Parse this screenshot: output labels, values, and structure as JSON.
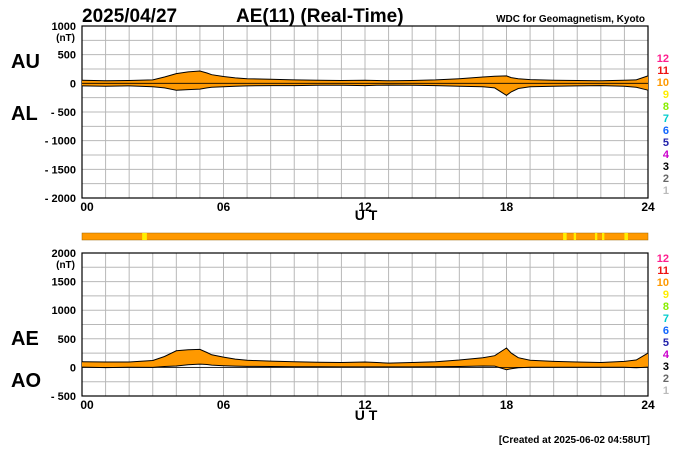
{
  "header": {
    "date": "2025/04/27",
    "title": "AE(11) (Real-Time)",
    "source": "WDC for Geomagnetism, Kyoto"
  },
  "footer": {
    "created": "[Created at 2025-06-02 04:58UT]"
  },
  "legend": {
    "items": [
      {
        "label": "12",
        "color": "#ff1f8f"
      },
      {
        "label": "11",
        "color": "#ee1111"
      },
      {
        "label": "10",
        "color": "#ff9900"
      },
      {
        "label": "9",
        "color": "#ffee00"
      },
      {
        "label": "8",
        "color": "#88ee00"
      },
      {
        "label": "7",
        "color": "#00cccc"
      },
      {
        "label": "6",
        "color": "#1166ff"
      },
      {
        "label": "5",
        "color": "#2222aa"
      },
      {
        "label": "4",
        "color": "#cc00cc"
      },
      {
        "label": "3",
        "color": "#000000"
      },
      {
        "label": "2",
        "color": "#666666"
      },
      {
        "label": "1",
        "color": "#bbbbbb"
      }
    ]
  },
  "colors": {
    "fill": "#ff9900",
    "bar": "#ff9900",
    "bar_highlight": "#ffee00"
  },
  "station_count_bar": {
    "x_range": [
      0,
      24
    ],
    "highlights": [
      [
        2.55,
        2.75
      ],
      [
        20.4,
        20.55
      ],
      [
        20.85,
        20.95
      ],
      [
        21.75,
        21.85
      ],
      [
        22.05,
        22.15
      ],
      [
        23.0,
        23.15
      ]
    ]
  },
  "chart_data": [
    {
      "type": "area",
      "name": "AU/AL",
      "ylabel_unit": "(nT)",
      "series_labels": [
        "AU",
        "AL"
      ],
      "xlabel": "U T",
      "xlim": [
        0,
        24
      ],
      "ylim": [
        -2000,
        1000
      ],
      "yticks": [
        1000,
        500,
        0,
        -500,
        -1000,
        -1500,
        -2000
      ],
      "ytick_labels": [
        "1000",
        "500",
        "0",
        "- 500",
        "- 1000",
        "- 1500",
        "- 2000"
      ],
      "xticks": [
        0,
        6,
        12,
        18,
        24
      ],
      "xtick_labels": [
        "00",
        "06",
        "12",
        "18",
        "24"
      ],
      "grid": true,
      "x": [
        0,
        1,
        2,
        3,
        3.5,
        4,
        4.5,
        5,
        5.3,
        5.5,
        6,
        6.5,
        7,
        8,
        9,
        10,
        11,
        12,
        12.5,
        13,
        14,
        15,
        16,
        17,
        17.5,
        18,
        18.2,
        18.5,
        19,
        20,
        21,
        22,
        23,
        23.5,
        24
      ],
      "series": [
        {
          "values": [
            55,
            45,
            50,
            60,
            110,
            170,
            200,
            215,
            180,
            150,
            120,
            95,
            80,
            70,
            60,
            55,
            50,
            55,
            50,
            45,
            50,
            60,
            80,
            110,
            125,
            130,
            100,
            80,
            65,
            55,
            50,
            45,
            55,
            60,
            130
          ]
        },
        {
          "values": [
            -45,
            -50,
            -45,
            -60,
            -80,
            -120,
            -110,
            -100,
            -80,
            -70,
            -60,
            -50,
            -45,
            -40,
            -40,
            -35,
            -35,
            -40,
            -35,
            -30,
            -35,
            -40,
            -50,
            -60,
            -80,
            -210,
            -150,
            -90,
            -60,
            -50,
            -45,
            -40,
            -50,
            -70,
            -120
          ]
        }
      ]
    },
    {
      "type": "area",
      "name": "AE/AO",
      "ylabel_unit": "(nT)",
      "series_labels": [
        "AE",
        "AO"
      ],
      "xlabel": "U T",
      "xlim": [
        0,
        24
      ],
      "ylim": [
        -500,
        2000
      ],
      "yticks": [
        2000,
        1500,
        1000,
        500,
        0,
        -500
      ],
      "ytick_labels": [
        "2000",
        "1500",
        "1000",
        "500",
        "0",
        "- 500"
      ],
      "xticks": [
        0,
        6,
        12,
        18,
        24
      ],
      "xtick_labels": [
        "00",
        "06",
        "12",
        "18",
        "24"
      ],
      "grid": true,
      "x": [
        0,
        1,
        2,
        3,
        3.5,
        4,
        4.5,
        5,
        5.3,
        5.5,
        6,
        6.5,
        7,
        8,
        9,
        10,
        11,
        12,
        12.5,
        13,
        14,
        15,
        16,
        17,
        17.5,
        18,
        18.2,
        18.5,
        19,
        20,
        21,
        22,
        23,
        23.5,
        24
      ],
      "series": [
        {
          "values": [
            100,
            95,
            95,
            120,
            190,
            290,
            310,
            315,
            260,
            220,
            180,
            145,
            125,
            110,
            100,
            90,
            85,
            95,
            85,
            75,
            85,
            100,
            130,
            170,
            205,
            340,
            250,
            170,
            125,
            105,
            95,
            85,
            105,
            130,
            250
          ]
        },
        {
          "values": [
            5,
            -3,
            3,
            0,
            15,
            25,
            45,
            58,
            50,
            40,
            30,
            23,
            18,
            15,
            10,
            10,
            8,
            8,
            8,
            8,
            8,
            10,
            15,
            25,
            23,
            -40,
            -25,
            -5,
            3,
            3,
            3,
            3,
            3,
            -5,
            5
          ]
        }
      ]
    }
  ]
}
